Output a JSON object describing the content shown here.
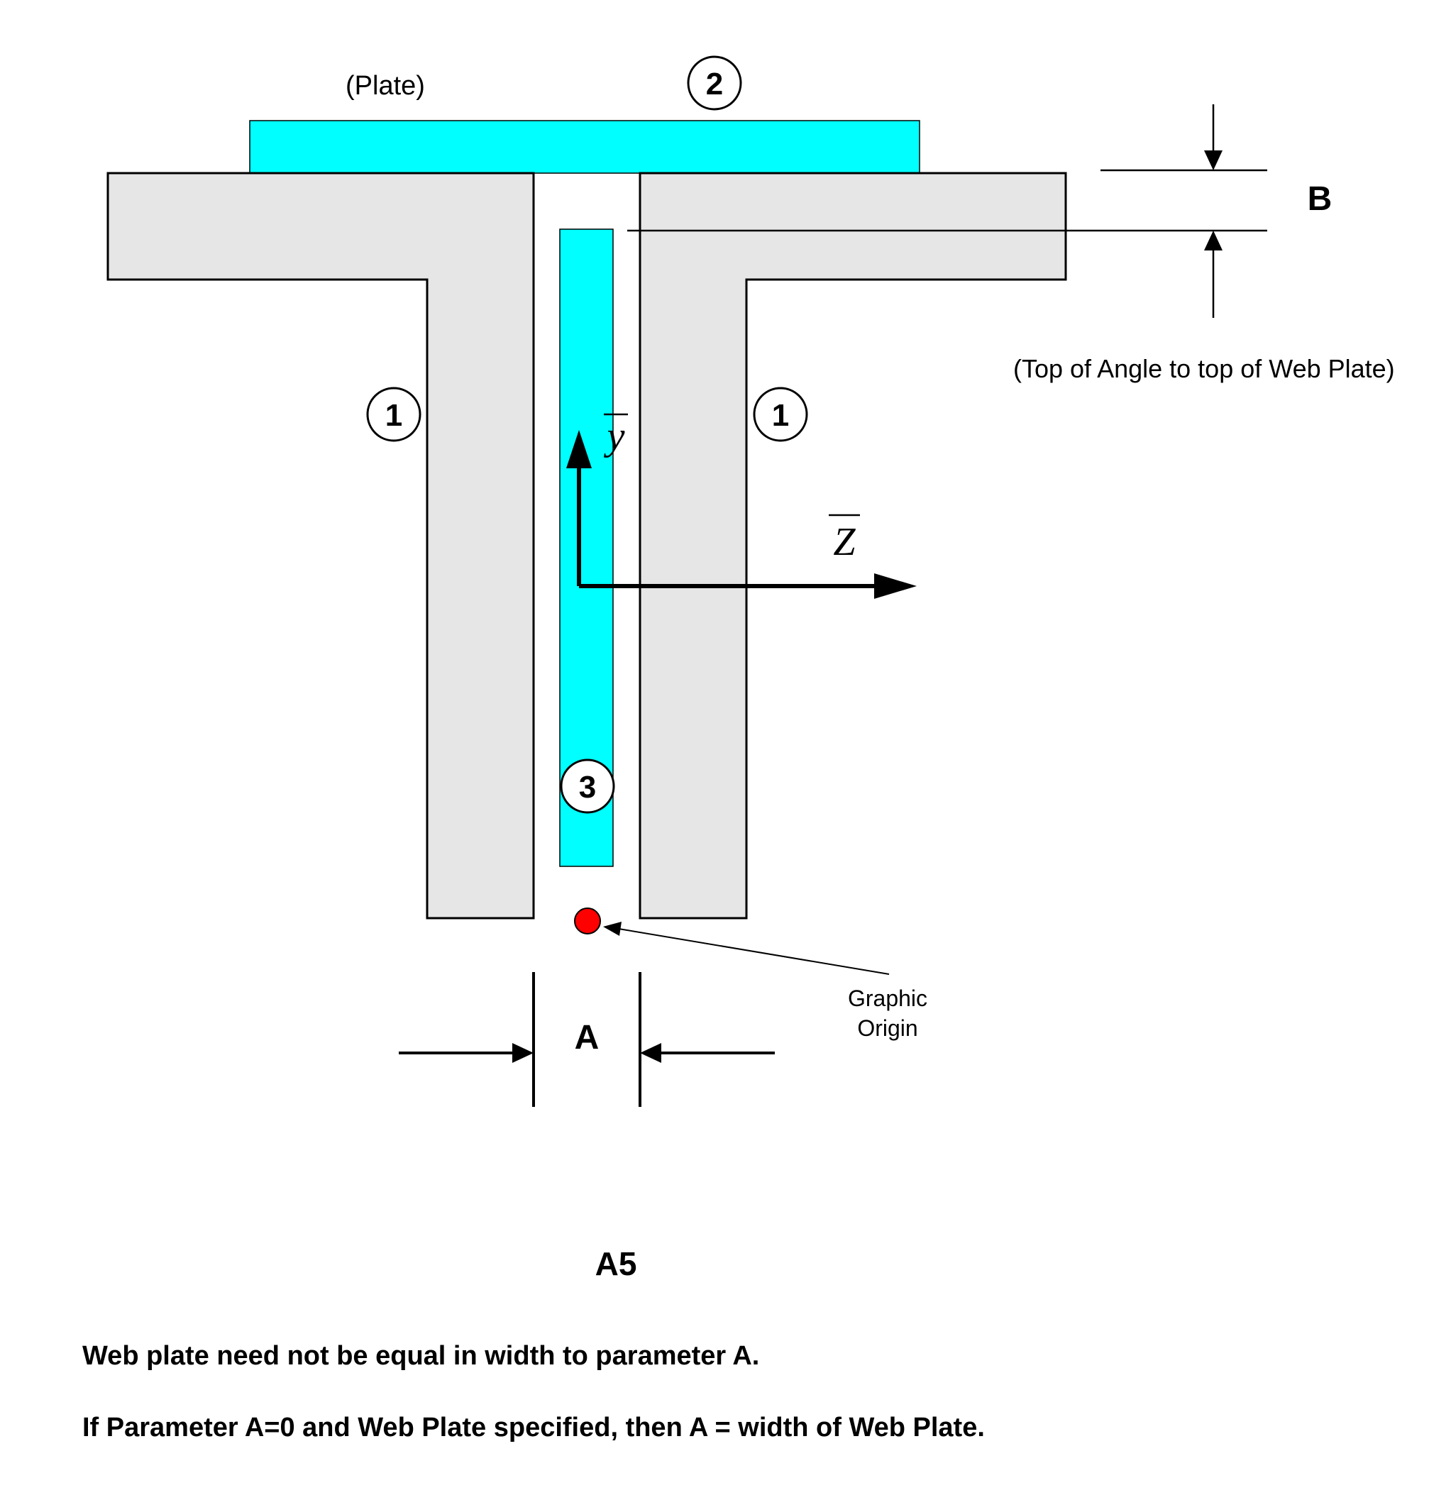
{
  "labels": {
    "plate": "(Plate)",
    "dimension_b": "B",
    "dimension_b_note": "(Top of Angle to top of Web Plate)",
    "dimension_a": "A",
    "graphic_origin_line1": "Graphic",
    "graphic_origin_line2": "Origin",
    "axis_y": "y",
    "axis_z": "Z",
    "section_title": "A5"
  },
  "callouts": {
    "angle_left": "1",
    "angle_right": "1",
    "top_plate": "2",
    "web_plate": "3"
  },
  "notes": {
    "note1": "Web plate need not be equal in width to parameter A.",
    "note2": "If Parameter A=0 and Web Plate specified, then A = width of Web Plate."
  },
  "colors": {
    "angle_fill": "#e6e6e6",
    "plate_fill": "#00ffff",
    "origin_marker": "#ff0000",
    "outline": "#000000"
  }
}
